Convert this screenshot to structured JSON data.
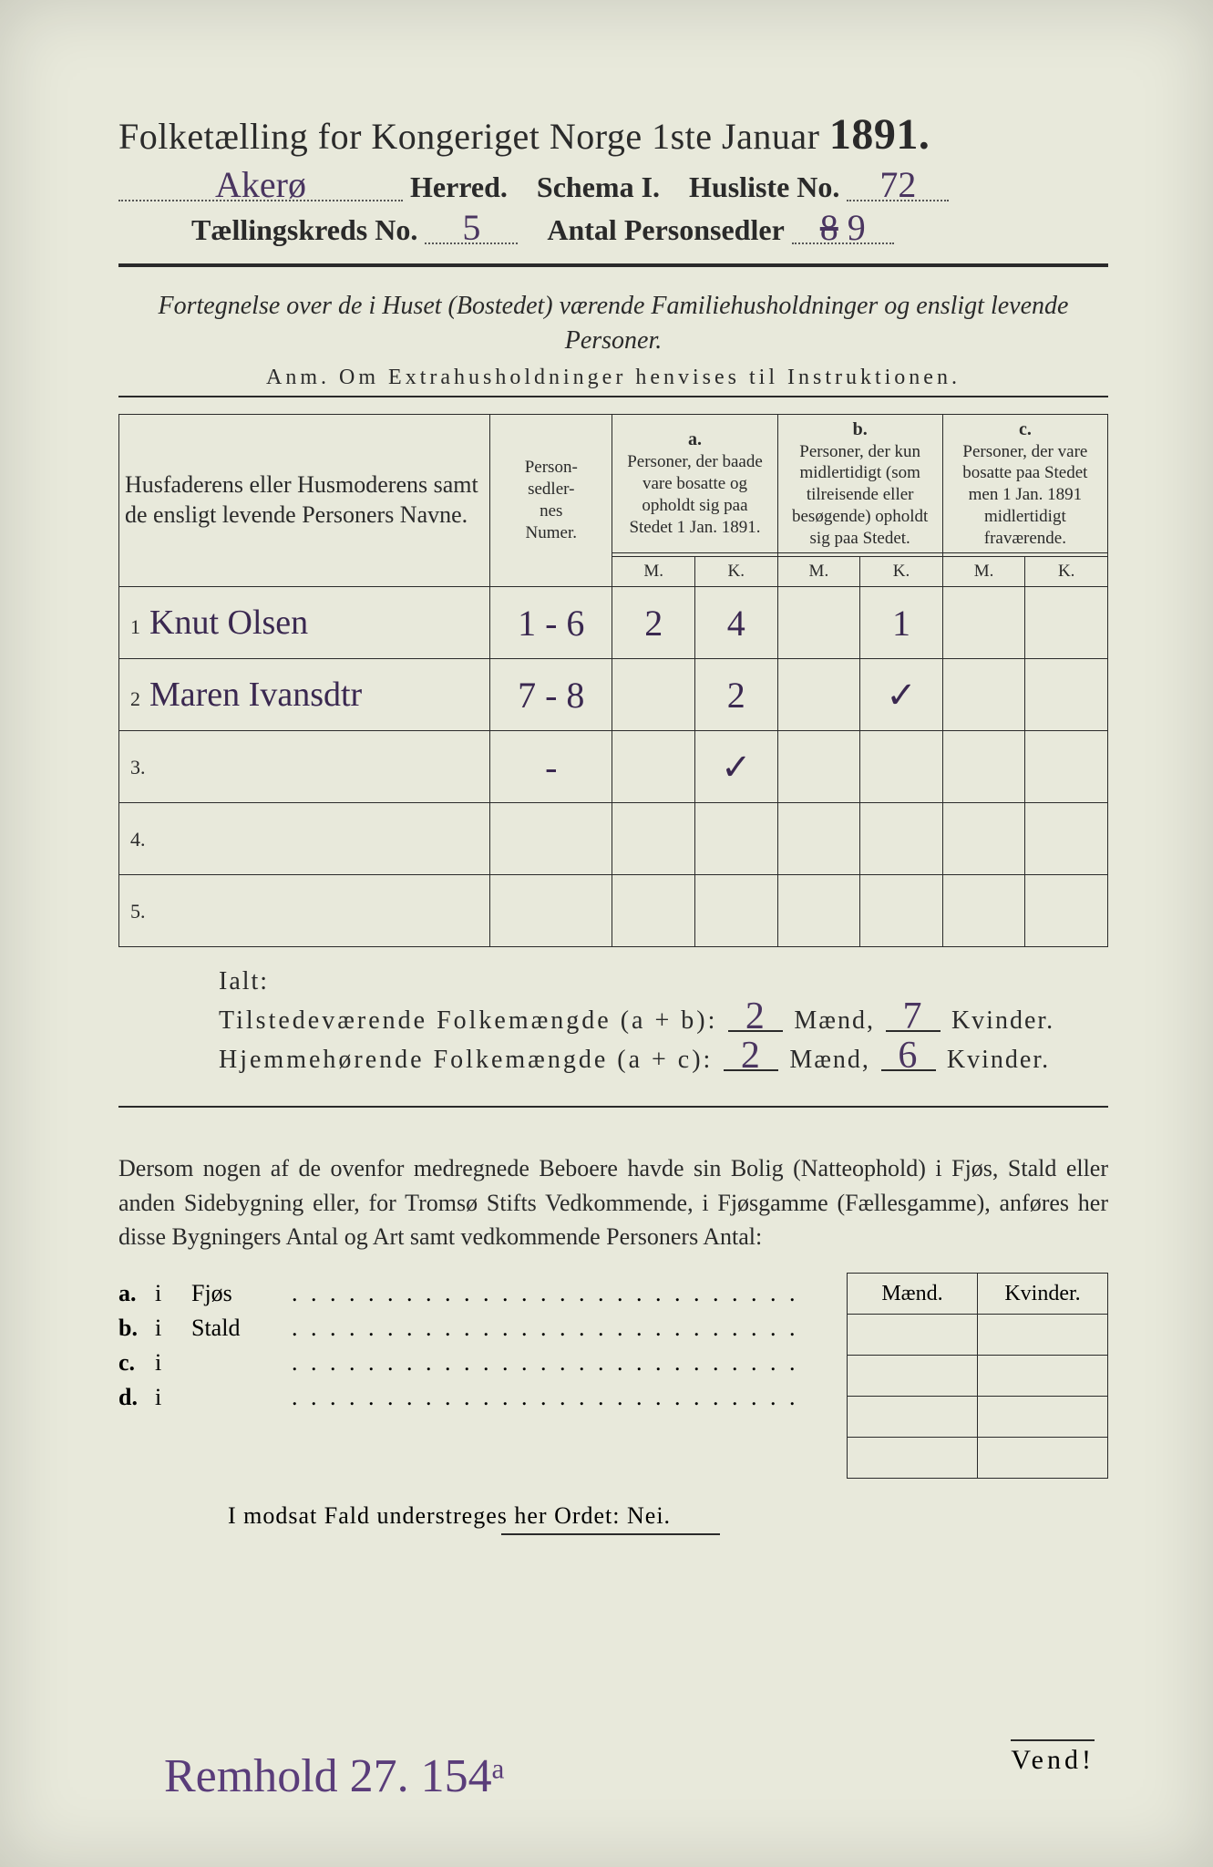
{
  "header": {
    "title_prefix": "Folketælling for Kongeriget Norge 1ste Januar",
    "year": "1891.",
    "herred_value": "Akerø",
    "herred_label": "Herred.",
    "schema_label": "Schema I.",
    "husliste_label": "Husliste No.",
    "husliste_value": "72",
    "kreds_label": "Tællingskreds No.",
    "kreds_value": "5",
    "antal_label": "Antal Personsedler",
    "antal_value": "9",
    "antal_struck": "8"
  },
  "subtitle": {
    "line": "Fortegnelse over de i Huset (Bostedet) værende Familiehusholdninger og ensligt levende Personer.",
    "anm": "Anm. Om Extrahusholdninger henvises til Instruktionen."
  },
  "table": {
    "col_name": "Husfaderens eller Husmoderens samt de ensligt levende Personers Navne.",
    "col_num": "Person-\nsedler-\nnes\nNumer.",
    "col_a_letter": "a.",
    "col_a": "Personer, der baade vare bosatte og opholdt sig paa Stedet 1 Jan. 1891.",
    "col_b_letter": "b.",
    "col_b": "Personer, der kun midlertidigt (som tilreisende eller besøgende) opholdt sig paa Stedet.",
    "col_c_letter": "c.",
    "col_c": "Personer, der vare bosatte paa Stedet men 1 Jan. 1891 midlertidigt fraværende.",
    "mk_m": "M.",
    "mk_k": "K.",
    "rows": [
      {
        "n": "1",
        "name": "Knut Olsen",
        "num": "1 - 6",
        "a_m": "2",
        "a_k": "4",
        "b_m": "",
        "b_k": "1",
        "c_m": "",
        "c_k": ""
      },
      {
        "n": "2",
        "name": "Maren Ivansdtr",
        "num": "7 - 8",
        "a_m": "",
        "a_k": "2",
        "b_m": "",
        "b_k": "✓",
        "c_m": "",
        "c_k": ""
      },
      {
        "n": "3.",
        "name": "",
        "num": "-",
        "a_m": "",
        "a_k": "✓",
        "b_m": "",
        "b_k": "",
        "c_m": "",
        "c_k": ""
      },
      {
        "n": "4.",
        "name": "",
        "num": "",
        "a_m": "",
        "a_k": "",
        "b_m": "",
        "b_k": "",
        "c_m": "",
        "c_k": ""
      },
      {
        "n": "5.",
        "name": "",
        "num": "",
        "a_m": "",
        "a_k": "",
        "b_m": "",
        "b_k": "",
        "c_m": "",
        "c_k": ""
      }
    ]
  },
  "ialt": {
    "heading": "Ialt:",
    "row1_label": "Tilstedeværende Folkemængde (a + b):",
    "row1_m": "2",
    "row1_k": "7",
    "row2_label": "Hjemmehørende Folkemængde (a + c):",
    "row2_m": "2",
    "row2_k": "6",
    "maend": "Mænd,",
    "kvinder": "Kvinder."
  },
  "para": "Dersom nogen af de ovenfor medregnede Beboere havde sin Bolig (Natteophold) i Fjøs, Stald eller anden Sidebygning eller, for Tromsø Stifts Vedkommende, i Fjøsgamme (Fællesgamme), anføres her disse Bygningers Antal og Art samt vedkommende Personers Antal:",
  "lower": {
    "m_label": "Mænd.",
    "k_label": "Kvinder.",
    "lines": [
      {
        "letter": "a.",
        "i": "i",
        "label": "Fjøs"
      },
      {
        "letter": "b.",
        "i": "i",
        "label": "Stald"
      },
      {
        "letter": "c.",
        "i": "i",
        "label": ""
      },
      {
        "letter": "d.",
        "i": "i",
        "label": ""
      }
    ]
  },
  "nei": "I modsat Fald understreges her Ordet: Nei.",
  "vend": "Vend!",
  "bottom_hw": "Remhold 27. 154ᵃ"
}
